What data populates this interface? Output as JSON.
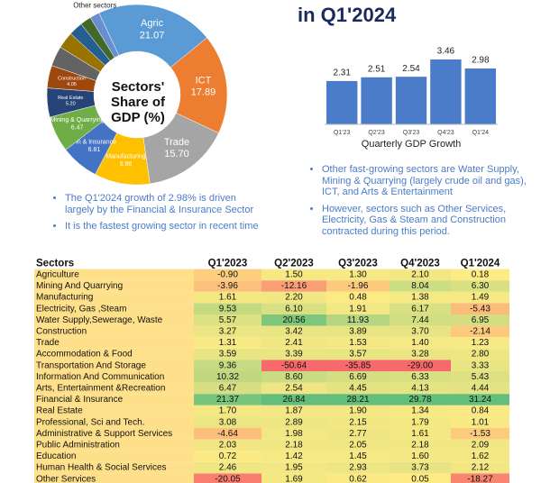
{
  "title": "in Q1'2024",
  "chart_data": [
    {
      "type": "donut",
      "title": "Sectors' Share of GDP (%)",
      "categories": [
        "Agric",
        "ICT",
        "Trade",
        "Manufacturing",
        "Fin & Insurance",
        "Mining & Quarrying",
        "Real Estate",
        "Construction",
        null,
        null,
        null,
        null,
        "Other sectors"
      ],
      "values": [
        21.07,
        17.89,
        15.7,
        9.98,
        6.81,
        6.47,
        5.2,
        4.05,
        3.6,
        3.0,
        2.5,
        2.0,
        1.73
      ],
      "value_labels": [
        "21.07",
        "17.89",
        "15.70",
        "9.98",
        "6.81",
        "6.47",
        "5.20",
        "4.05",
        null,
        null,
        null,
        null,
        null
      ],
      "colors": [
        "#5b9bd5",
        "#ed7d31",
        "#a5a5a5",
        "#ffc000",
        "#4472c4",
        "#70ad47",
        "#264478",
        "#9e480e",
        "#636363",
        "#997300",
        "#255e91",
        "#43682b",
        "#698ed0"
      ]
    },
    {
      "type": "bar",
      "title": "Quarterly GDP Growth",
      "categories": [
        "Q1'23",
        "Q2'23",
        "Q3'23",
        "Q4'23",
        "Q1'24"
      ],
      "values": [
        2.31,
        2.51,
        2.54,
        3.46,
        2.98
      ],
      "color": "#4a7cc9"
    }
  ],
  "bullets_left": [
    "The Q1'2024 growth of 2.98% is driven largely by the Financial & Insurance Sector",
    "It is the fastest growing sector in recent time"
  ],
  "bullets_right": [
    "Other fast-growing sectors are Water Supply, Mining & Quarrying (largely crude oil and gas), ICT, and Arts & Entertainment",
    "However, sectors such as Other Services, Electricity, Gas & Steam and Construction contracted during this period."
  ],
  "table": {
    "header": [
      "Sectors",
      "Q1'2023",
      "Q2'2023",
      "Q3'2023",
      "Q4'2023",
      "Q1'2024"
    ],
    "rows": [
      [
        "Agriculture",
        "-0.90",
        "1.50",
        "1.30",
        "2.10",
        "0.18"
      ],
      [
        "Mining And Quarrying",
        "-3.96",
        "-12.16",
        "-1.96",
        "8.04",
        "6.30"
      ],
      [
        "Manufacturing",
        "1.61",
        "2.20",
        "0.48",
        "1.38",
        "1.49"
      ],
      [
        "Electricity, Gas ,Steam",
        "9.53",
        "6.10",
        "1.91",
        "6.17",
        "-5.43"
      ],
      [
        "Water Supply,Sewerage, Waste",
        "5.57",
        "20.56",
        "11.93",
        "7.44",
        "6.95"
      ],
      [
        "Construction",
        "3.27",
        "3.42",
        "3.89",
        "3.70",
        "-2.14"
      ],
      [
        "Trade",
        "1.31",
        "2.41",
        "1.53",
        "1.40",
        "1.23"
      ],
      [
        "Accommodation & Food",
        "3.59",
        "3.39",
        "3.57",
        "3.28",
        "2.80"
      ],
      [
        "Transportation And Storage",
        "9.36",
        "-50.64",
        "-35.85",
        "-29.00",
        "3.33"
      ],
      [
        "Information And Communication",
        "10.32",
        "8.60",
        "6.69",
        "6.33",
        "5.43"
      ],
      [
        "Arts, Entertainment &Recreation",
        "6.47",
        "2.54",
        "4.45",
        "4.13",
        "4.44"
      ],
      [
        "Financial & Insurance",
        "21.37",
        "26.84",
        "28.21",
        "29.78",
        "31.24"
      ],
      [
        "Real Estate",
        "1.70",
        "1.87",
        "1.90",
        "1.34",
        "0.84"
      ],
      [
        "Professional, Sci and Tech.",
        "3.08",
        "2.89",
        "2.15",
        "1.79",
        "1.01"
      ],
      [
        "Administrative & Support Services",
        "-4.64",
        "1.98",
        "2.77",
        "1.61",
        "-1.53"
      ],
      [
        "Public Administration",
        "2.03",
        "2.18",
        "2.05",
        "2.18",
        "2.09"
      ],
      [
        "Education",
        "0.72",
        "1.42",
        "1.45",
        "1.60",
        "1.62"
      ],
      [
        "Human Health & Social Services",
        "2.46",
        "1.95",
        "2.93",
        "3.73",
        "2.12"
      ],
      [
        "Other Services",
        "-20.05",
        "1.69",
        "0.62",
        "0.05",
        "-18.27"
      ]
    ]
  }
}
